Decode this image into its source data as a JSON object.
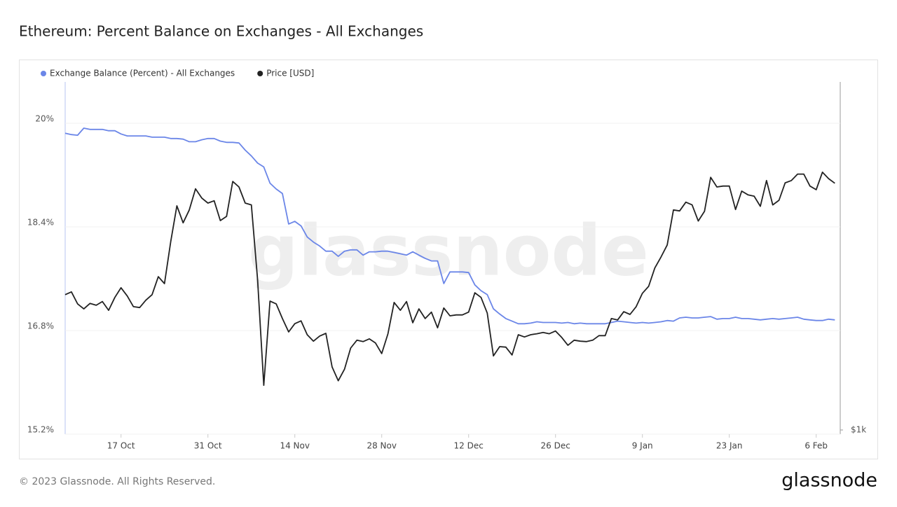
{
  "chart_data": {
    "type": "line",
    "title": "Ethereum: Percent Balance on Exchanges - All Exchanges",
    "watermark": "glassnode",
    "footer": "© 2023 Glassnode. All Rights Reserved.",
    "logo": "glassnode",
    "categories": [
      null,
      null,
      null,
      null,
      null,
      null,
      null,
      null,
      null,
      "17 Oct",
      null,
      null,
      null,
      null,
      null,
      null,
      null,
      null,
      null,
      null,
      null,
      null,
      null,
      "31 Oct",
      null,
      null,
      null,
      null,
      null,
      null,
      null,
      null,
      null,
      null,
      null,
      null,
      null,
      "14 Nov",
      null,
      null,
      null,
      null,
      null,
      null,
      null,
      null,
      null,
      null,
      null,
      null,
      null,
      "28 Nov",
      null,
      null,
      null,
      null,
      null,
      null,
      null,
      null,
      null,
      null,
      null,
      null,
      null,
      "12 Dec",
      null,
      null,
      null,
      null,
      null,
      null,
      null,
      null,
      null,
      null,
      null,
      null,
      null,
      "26 Dec",
      null,
      null,
      null,
      null,
      null,
      null,
      null,
      null,
      null,
      null,
      null,
      null,
      null,
      "9 Jan",
      null,
      null,
      null,
      null,
      null,
      null,
      null,
      null,
      null,
      null,
      null,
      null,
      null,
      "23 Jan",
      null,
      null,
      null,
      null,
      null,
      null,
      null,
      null,
      null,
      null,
      null,
      null,
      null,
      "6 Feb",
      null,
      null,
      null
    ],
    "series": [
      {
        "name": "Exchange Balance (Percent) - All Exchanges",
        "color": "#6b86e8",
        "axis": "y",
        "values": [
          19.78,
          19.76,
          19.75,
          19.86,
          19.84,
          19.84,
          19.84,
          19.82,
          19.82,
          19.77,
          19.74,
          19.74,
          19.74,
          19.74,
          19.72,
          19.72,
          19.72,
          19.7,
          19.7,
          19.69,
          19.65,
          19.65,
          19.68,
          19.7,
          19.7,
          19.66,
          19.64,
          19.64,
          19.63,
          19.52,
          19.43,
          19.32,
          19.26,
          19.01,
          18.92,
          18.85,
          18.38,
          18.42,
          18.35,
          18.18,
          18.1,
          18.04,
          17.96,
          17.96,
          17.88,
          17.96,
          17.98,
          17.98,
          17.9,
          17.95,
          17.95,
          17.96,
          17.96,
          17.94,
          17.92,
          17.9,
          17.95,
          17.9,
          17.85,
          17.81,
          17.81,
          17.46,
          17.64,
          17.64,
          17.64,
          17.63,
          17.44,
          17.35,
          17.29,
          17.07,
          16.99,
          16.92,
          16.88,
          16.84,
          16.84,
          16.85,
          16.87,
          16.86,
          16.86,
          16.86,
          16.85,
          16.86,
          16.84,
          16.85,
          16.84,
          16.84,
          16.84,
          16.84,
          16.86,
          16.88,
          16.87,
          16.86,
          16.85,
          16.86,
          16.85,
          16.86,
          16.87,
          16.89,
          16.88,
          16.93,
          16.94,
          16.93,
          16.93,
          16.94,
          16.95,
          16.91,
          16.92,
          16.92,
          16.94,
          16.92,
          16.92,
          16.91,
          16.9,
          16.91,
          16.92,
          16.91,
          16.92,
          16.93,
          16.94,
          16.91,
          16.9,
          16.89,
          16.89,
          16.91,
          16.9
        ]
      },
      {
        "name": "Price [USD]",
        "color": "#222222",
        "axis": "y2",
        "values": [
          1294,
          1300,
          1274,
          1263,
          1275,
          1271,
          1279,
          1260,
          1288,
          1309,
          1291,
          1268,
          1266,
          1282,
          1294,
          1333,
          1318,
          1409,
          1487,
          1450,
          1478,
          1524,
          1504,
          1493,
          1498,
          1455,
          1464,
          1540,
          1528,
          1493,
          1489,
          1326,
          1097,
          1280,
          1274,
          1242,
          1213,
          1231,
          1237,
          1207,
          1193,
          1204,
          1210,
          1137,
          1107,
          1132,
          1178,
          1195,
          1192,
          1198,
          1189,
          1166,
          1209,
          1277,
          1260,
          1279,
          1233,
          1263,
          1242,
          1256,
          1222,
          1265,
          1248,
          1250,
          1250,
          1256,
          1298,
          1288,
          1254,
          1161,
          1181,
          1180,
          1163,
          1207,
          1202,
          1207,
          1209,
          1212,
          1209,
          1215,
          1201,
          1184,
          1195,
          1193,
          1192,
          1195,
          1205,
          1205,
          1242,
          1239,
          1257,
          1251,
          1268,
          1297,
          1312,
          1352,
          1376,
          1402,
          1478,
          1476,
          1495,
          1489,
          1454,
          1475,
          1549,
          1528,
          1530,
          1530,
          1479,
          1519,
          1511,
          1508,
          1486,
          1542,
          1489,
          1499,
          1537,
          1542,
          1556,
          1556,
          1530,
          1522,
          1560,
          1546,
          1536
        ]
      }
    ],
    "ylim": [
      15.2,
      20.6
    ],
    "yticks": [
      {
        "value": 15.2,
        "label": "15.2%"
      },
      {
        "value": 16.8,
        "label": "16.8%"
      },
      {
        "value": 18.4,
        "label": "18.4%"
      },
      {
        "value": 20,
        "label": "20%"
      }
    ],
    "y2lim": [
      1000,
      1760
    ],
    "y2ticks": [
      {
        "value": 1000,
        "label": "$1k"
      }
    ],
    "grid": true,
    "legend": "top-left"
  }
}
